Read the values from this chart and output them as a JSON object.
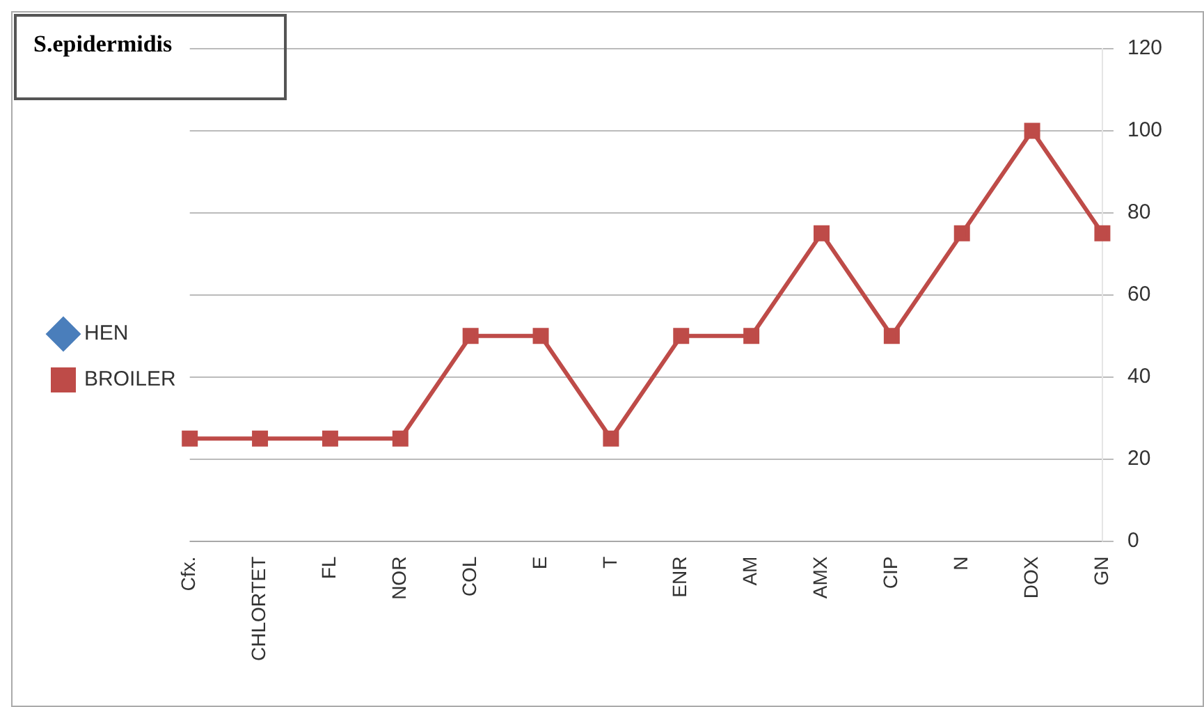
{
  "chart_data": {
    "type": "line",
    "title": "S.epidermidis",
    "categories": [
      "Cfx.",
      "CHLORTET",
      "FL",
      "NOR",
      "COL",
      "E",
      "T",
      "ENR",
      "AM",
      "AMX",
      "CIP",
      "N",
      "DOX",
      "GN"
    ],
    "series": [
      {
        "name": "HEN",
        "color": "#4a7ebb",
        "marker": "diamond",
        "values": [
          null,
          null,
          null,
          null,
          null,
          null,
          null,
          null,
          null,
          null,
          null,
          null,
          null,
          null
        ]
      },
      {
        "name": "BROILER",
        "color": "#be4b48",
        "marker": "square",
        "values": [
          25,
          25,
          25,
          25,
          50,
          50,
          25,
          50,
          50,
          75,
          50,
          75,
          100,
          75
        ]
      }
    ],
    "ylim": [
      0,
      120
    ],
    "yticks": [
      0,
      20,
      40,
      60,
      80,
      100,
      120
    ],
    "grid": "y",
    "legend": "left",
    "line_style": "solid"
  }
}
